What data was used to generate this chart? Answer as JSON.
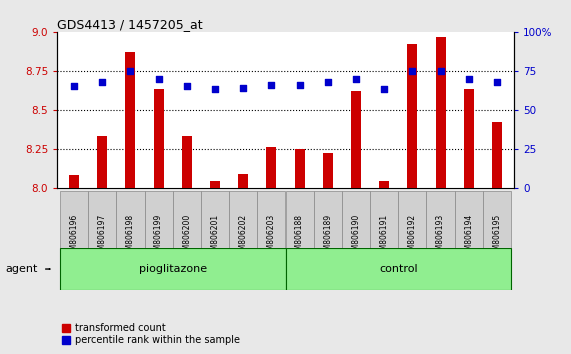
{
  "title": "GDS4413 / 1457205_at",
  "samples": [
    "GSM806196",
    "GSM806197",
    "GSM806198",
    "GSM806199",
    "GSM806200",
    "GSM806201",
    "GSM806202",
    "GSM806203",
    "GSM806188",
    "GSM806189",
    "GSM806190",
    "GSM806191",
    "GSM806192",
    "GSM806193",
    "GSM806194",
    "GSM806195"
  ],
  "transformed_count": [
    8.08,
    8.33,
    8.87,
    8.63,
    8.33,
    8.04,
    8.09,
    8.26,
    8.25,
    8.22,
    8.62,
    8.04,
    8.92,
    8.97,
    8.63,
    8.42
  ],
  "percentile_rank": [
    65,
    68,
    75,
    70,
    65,
    63,
    64,
    66,
    66,
    68,
    70,
    63,
    75,
    75,
    70,
    68
  ],
  "groups": [
    {
      "label": "pioglitazone",
      "start": 0,
      "end": 8
    },
    {
      "label": "control",
      "start": 8,
      "end": 16
    }
  ],
  "agent_label": "agent",
  "ylim_left": [
    8.0,
    9.0
  ],
  "ylim_right": [
    0,
    100
  ],
  "yticks_left": [
    8.0,
    8.25,
    8.5,
    8.75,
    9.0
  ],
  "yticks_right": [
    0,
    25,
    50,
    75,
    100
  ],
  "bar_color": "#CC0000",
  "dot_color": "#0000CC",
  "background_color": "#E8E8E8",
  "plot_bg_color": "#FFFFFF",
  "legend_items": [
    "transformed count",
    "percentile rank within the sample"
  ],
  "grid_color": "#000000",
  "sample_box_color": "#D0D0D0",
  "sample_box_edge": "#888888",
  "group_bg_color": "#90EE90",
  "group_border_color": "#006400",
  "tick_label_color_left": "#CC0000",
  "tick_label_color_right": "#0000CC",
  "bar_width": 0.35
}
